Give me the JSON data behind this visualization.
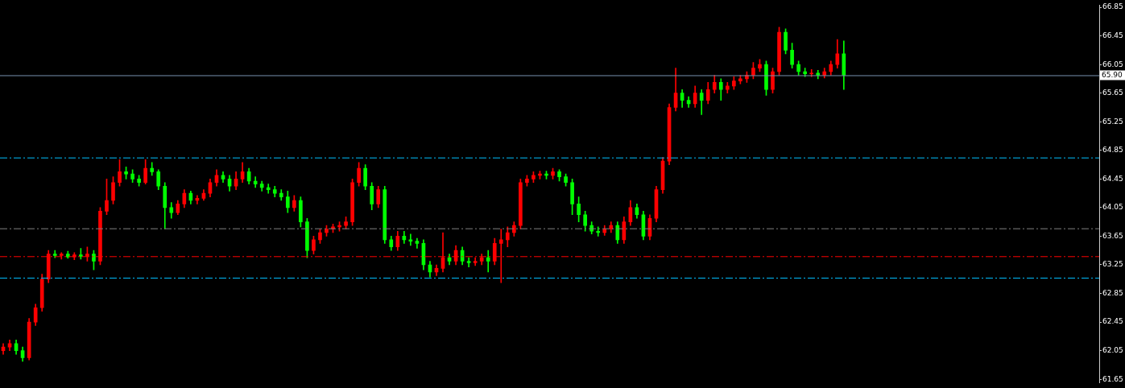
{
  "chart_data": {
    "type": "candlestick",
    "categories": [
      null,
      null,
      null,
      null,
      null,
      null,
      null,
      null,
      null,
      null,
      null,
      null,
      null,
      null,
      null,
      null,
      null,
      null,
      null,
      null,
      null,
      null,
      null,
      null,
      null,
      null,
      null,
      null,
      null,
      null,
      null,
      null,
      null,
      null,
      null,
      null,
      null,
      null,
      null,
      null,
      null,
      null,
      null,
      null,
      null,
      null,
      null,
      null,
      null,
      null,
      null,
      null,
      null,
      null,
      null,
      null,
      null,
      null,
      null,
      null,
      null,
      null,
      null,
      null,
      null,
      null,
      null,
      null,
      null,
      null,
      null,
      null,
      null,
      null,
      null,
      null,
      null,
      null,
      null,
      null,
      null,
      null,
      null,
      null,
      null,
      null,
      null,
      null,
      null,
      null,
      null,
      null,
      null,
      null,
      null,
      null,
      null,
      null,
      null,
      null,
      null,
      null,
      null,
      null,
      null,
      null,
      null,
      null,
      null,
      null,
      null,
      null,
      null,
      null,
      null,
      null,
      null,
      null,
      null,
      null,
      null,
      null,
      null,
      null,
      null,
      null,
      null,
      null,
      null,
      null,
      null,
      null,
      null,
      null,
      null,
      null,
      null,
      null,
      null,
      null,
      null,
      null,
      null,
      null,
      null,
      null,
      null,
      null,
      null,
      null,
      null,
      null,
      null,
      null,
      null,
      null,
      null,
      null,
      null,
      null,
      null,
      null,
      null,
      null,
      null,
      null,
      null,
      null,
      null,
      null
    ],
    "ohlc": [
      [
        62.05,
        62.15,
        62.0,
        62.1
      ],
      [
        62.1,
        62.2,
        62.05,
        62.15
      ],
      [
        62.15,
        62.2,
        62.0,
        62.05
      ],
      [
        62.05,
        62.1,
        61.9,
        61.95
      ],
      [
        61.95,
        62.5,
        61.92,
        62.45
      ],
      [
        62.45,
        62.7,
        62.4,
        62.65
      ],
      [
        62.65,
        63.12,
        62.6,
        63.05
      ],
      [
        63.05,
        63.45,
        63.0,
        63.4
      ],
      [
        63.4,
        63.45,
        63.35,
        63.38
      ],
      [
        63.38,
        63.42,
        63.33,
        63.4
      ],
      [
        63.4,
        63.44,
        63.34,
        63.36
      ],
      [
        63.36,
        63.42,
        63.32,
        63.39
      ],
      [
        63.39,
        63.48,
        63.33,
        63.37
      ],
      [
        63.37,
        63.5,
        63.3,
        63.4
      ],
      [
        63.4,
        63.45,
        63.18,
        63.3
      ],
      [
        63.3,
        64.05,
        63.25,
        64.0
      ],
      [
        64.0,
        64.45,
        63.95,
        64.15
      ],
      [
        64.15,
        64.48,
        64.1,
        64.4
      ],
      [
        64.4,
        64.72,
        64.35,
        64.55
      ],
      [
        64.55,
        64.62,
        64.45,
        64.52
      ],
      [
        64.52,
        64.58,
        64.4,
        64.45
      ],
      [
        64.45,
        64.5,
        64.35,
        64.4
      ],
      [
        64.4,
        64.72,
        64.38,
        64.6
      ],
      [
        64.6,
        64.68,
        64.5,
        64.55
      ],
      [
        64.55,
        64.58,
        64.3,
        64.35
      ],
      [
        64.35,
        64.4,
        63.75,
        64.05
      ],
      [
        64.05,
        64.12,
        63.9,
        63.98
      ],
      [
        63.98,
        64.15,
        63.95,
        64.1
      ],
      [
        64.1,
        64.3,
        64.05,
        64.25
      ],
      [
        64.25,
        64.28,
        64.1,
        64.15
      ],
      [
        64.15,
        64.22,
        64.1,
        64.18
      ],
      [
        64.18,
        64.3,
        64.15,
        64.25
      ],
      [
        64.25,
        64.45,
        64.2,
        64.4
      ],
      [
        64.4,
        64.58,
        64.35,
        64.5
      ],
      [
        64.5,
        64.55,
        64.4,
        64.45
      ],
      [
        64.45,
        64.5,
        64.28,
        64.35
      ],
      [
        64.35,
        64.55,
        64.3,
        64.45
      ],
      [
        64.45,
        64.68,
        64.4,
        64.55
      ],
      [
        64.55,
        64.6,
        64.38,
        64.42
      ],
      [
        64.42,
        64.48,
        64.33,
        64.38
      ],
      [
        64.38,
        64.42,
        64.28,
        64.33
      ],
      [
        64.33,
        64.38,
        64.25,
        64.3
      ],
      [
        64.3,
        64.35,
        64.2,
        64.25
      ],
      [
        64.25,
        64.3,
        64.15,
        64.2
      ],
      [
        64.2,
        64.28,
        63.98,
        64.05
      ],
      [
        64.05,
        64.22,
        64.0,
        64.15
      ],
      [
        64.15,
        64.2,
        63.78,
        63.85
      ],
      [
        63.85,
        63.9,
        63.35,
        63.45
      ],
      [
        63.45,
        63.65,
        63.4,
        63.6
      ],
      [
        63.6,
        63.75,
        63.55,
        63.7
      ],
      [
        63.7,
        63.8,
        63.65,
        63.75
      ],
      [
        63.75,
        63.82,
        63.7,
        63.78
      ],
      [
        63.78,
        63.85,
        63.72,
        63.8
      ],
      [
        63.8,
        63.92,
        63.75,
        63.85
      ],
      [
        63.85,
        64.45,
        63.8,
        64.4
      ],
      [
        64.4,
        64.68,
        64.35,
        64.6
      ],
      [
        64.6,
        64.65,
        64.3,
        64.35
      ],
      [
        64.35,
        64.4,
        64.02,
        64.1
      ],
      [
        64.1,
        64.35,
        64.05,
        64.3
      ],
      [
        64.3,
        64.35,
        63.55,
        63.6
      ],
      [
        63.6,
        63.65,
        63.45,
        63.5
      ],
      [
        63.5,
        63.72,
        63.45,
        63.65
      ],
      [
        63.65,
        63.72,
        63.55,
        63.6
      ],
      [
        63.6,
        63.68,
        63.52,
        63.58
      ],
      [
        63.58,
        63.62,
        63.48,
        63.55
      ],
      [
        63.55,
        63.6,
        63.18,
        63.25
      ],
      [
        63.25,
        63.3,
        63.08,
        63.15
      ],
      [
        63.15,
        63.25,
        63.1,
        63.2
      ],
      [
        63.2,
        63.7,
        63.15,
        63.35
      ],
      [
        63.35,
        63.4,
        63.25,
        63.3
      ],
      [
        63.3,
        63.52,
        63.25,
        63.45
      ],
      [
        63.45,
        63.5,
        63.25,
        63.3
      ],
      [
        63.3,
        63.35,
        63.22,
        63.28
      ],
      [
        63.28,
        63.35,
        63.24,
        63.3
      ],
      [
        63.3,
        63.4,
        63.25,
        63.35
      ],
      [
        63.35,
        63.45,
        63.15,
        63.3
      ],
      [
        63.3,
        63.62,
        63.25,
        63.55
      ],
      [
        63.55,
        63.75,
        63.0,
        63.6
      ],
      [
        63.6,
        63.78,
        63.5,
        63.7
      ],
      [
        63.7,
        63.85,
        63.65,
        63.8
      ],
      [
        63.8,
        64.45,
        63.75,
        64.4
      ],
      [
        64.4,
        64.5,
        64.35,
        64.45
      ],
      [
        64.45,
        64.55,
        64.4,
        64.5
      ],
      [
        64.5,
        64.56,
        64.45,
        64.52
      ],
      [
        64.52,
        64.56,
        64.45,
        64.5
      ],
      [
        64.5,
        64.6,
        64.45,
        64.55
      ],
      [
        64.55,
        64.58,
        64.42,
        64.48
      ],
      [
        64.48,
        64.52,
        64.35,
        64.4
      ],
      [
        64.4,
        64.45,
        63.95,
        64.1
      ],
      [
        64.1,
        64.2,
        63.85,
        63.95
      ],
      [
        63.95,
        64.0,
        63.72,
        63.8
      ],
      [
        63.8,
        63.85,
        63.68,
        63.72
      ],
      [
        63.72,
        63.78,
        63.65,
        63.7
      ],
      [
        63.7,
        63.8,
        63.66,
        63.75
      ],
      [
        63.75,
        63.85,
        63.7,
        63.8
      ],
      [
        63.8,
        63.85,
        63.55,
        63.6
      ],
      [
        63.6,
        63.92,
        63.55,
        63.85
      ],
      [
        63.85,
        64.15,
        63.8,
        64.05
      ],
      [
        64.05,
        64.1,
        63.9,
        63.95
      ],
      [
        63.95,
        64.0,
        63.6,
        63.65
      ],
      [
        63.65,
        63.95,
        63.6,
        63.9
      ],
      [
        63.9,
        64.35,
        63.85,
        64.3
      ],
      [
        64.3,
        64.75,
        64.25,
        64.7
      ],
      [
        64.7,
        65.5,
        64.65,
        65.45
      ],
      [
        65.45,
        66.0,
        65.4,
        65.65
      ],
      [
        65.65,
        65.7,
        65.45,
        65.55
      ],
      [
        65.55,
        65.6,
        65.45,
        65.5
      ],
      [
        65.5,
        65.75,
        65.45,
        65.65
      ],
      [
        65.65,
        65.7,
        65.35,
        65.55
      ],
      [
        65.55,
        65.8,
        65.5,
        65.7
      ],
      [
        65.7,
        65.9,
        65.65,
        65.8
      ],
      [
        65.8,
        65.85,
        65.55,
        65.7
      ],
      [
        65.7,
        65.8,
        65.65,
        65.75
      ],
      [
        65.75,
        65.88,
        65.7,
        65.82
      ],
      [
        65.82,
        65.9,
        65.78,
        65.85
      ],
      [
        65.85,
        65.95,
        65.8,
        65.9
      ],
      [
        65.9,
        66.08,
        65.85,
        66.0
      ],
      [
        66.0,
        66.12,
        65.95,
        66.05
      ],
      [
        66.05,
        66.1,
        65.62,
        65.7
      ],
      [
        65.7,
        66.0,
        65.65,
        65.95
      ],
      [
        65.95,
        66.57,
        65.9,
        66.5
      ],
      [
        66.5,
        66.55,
        66.2,
        66.25
      ],
      [
        66.25,
        66.35,
        66.0,
        66.05
      ],
      [
        66.05,
        66.1,
        65.9,
        65.95
      ],
      [
        65.95,
        66.0,
        65.88,
        65.92
      ],
      [
        65.92,
        65.98,
        65.88,
        65.93
      ],
      [
        65.93,
        65.97,
        65.85,
        65.9
      ],
      [
        65.9,
        66.0,
        65.86,
        65.95
      ],
      [
        65.95,
        66.1,
        65.9,
        66.05
      ],
      [
        66.05,
        66.4,
        66.0,
        66.2
      ],
      [
        66.2,
        66.38,
        65.7,
        65.9
      ],
      null,
      null,
      null,
      null,
      null,
      null,
      null,
      null,
      null,
      null,
      null,
      null,
      null,
      null,
      null,
      null,
      null,
      null,
      null,
      null,
      null,
      null,
      null,
      null,
      null,
      null,
      null,
      null,
      null,
      null,
      null,
      null,
      null,
      null,
      null,
      null,
      null,
      null,
      null
    ],
    "colors": [
      "#ff0000",
      "#ff0000",
      "#00ff00",
      "#00ff00",
      "#ff0000",
      "#ff0000",
      "#ff0000",
      "#ff0000",
      "#00ff00",
      "#ff0000",
      "#00ff00",
      "#ff0000",
      "#00ff00",
      "#ff0000",
      "#00ff00",
      "#ff0000",
      "#ff0000",
      "#ff0000",
      "#ff0000",
      "#00ff00",
      "#00ff00",
      "#00ff00",
      "#ff0000",
      "#00ff00",
      "#00ff00",
      "#00ff00",
      "#00ff00",
      "#ff0000",
      "#ff0000",
      "#00ff00",
      "#ff0000",
      "#ff0000",
      "#ff0000",
      "#ff0000",
      "#00ff00",
      "#00ff00",
      "#ff0000",
      "#ff0000",
      "#00ff00",
      "#00ff00",
      "#00ff00",
      "#00ff00",
      "#00ff00",
      "#00ff00",
      "#00ff00",
      "#ff0000",
      "#00ff00",
      "#00ff00",
      "#ff0000",
      "#ff0000",
      "#ff0000",
      "#ff0000",
      "#ff0000",
      "#ff0000",
      "#ff0000",
      "#ff0000",
      "#00ff00",
      "#00ff00",
      "#ff0000",
      "#00ff00",
      "#00ff00",
      "#ff0000",
      "#00ff00",
      "#00ff00",
      "#00ff00",
      "#00ff00",
      "#00ff00",
      "#ff0000",
      "#ff0000",
      "#00ff00",
      "#ff0000",
      "#00ff00",
      "#00ff00",
      "#ff0000",
      "#ff0000",
      "#00ff00",
      "#ff0000",
      "#ff0000",
      "#ff0000",
      "#ff0000",
      "#ff0000",
      "#ff0000",
      "#ff0000",
      "#ff0000",
      "#00ff00",
      "#ff0000",
      "#00ff00",
      "#00ff00",
      "#00ff00",
      "#00ff00",
      "#00ff00",
      "#00ff00",
      "#00ff00",
      "#ff0000",
      "#ff0000",
      "#00ff00",
      "#ff0000",
      "#ff0000",
      "#00ff00",
      "#00ff00",
      "#ff0000",
      "#ff0000",
      "#ff0000",
      "#ff0000",
      "#ff0000",
      "#00ff00",
      "#00ff00",
      "#ff0000",
      "#00ff00",
      "#ff0000",
      "#ff0000",
      "#00ff00",
      "#ff0000",
      "#ff0000",
      "#ff0000",
      "#ff0000",
      "#ff0000",
      "#ff0000",
      "#00ff00",
      "#ff0000",
      "#ff0000",
      "#00ff00",
      "#00ff00",
      "#00ff00",
      "#00ff00",
      "#ff0000",
      "#00ff00",
      "#ff0000",
      "#ff0000",
      "#ff0000",
      "#00ff00",
      null,
      null,
      null,
      null,
      null,
      null,
      null,
      null,
      null,
      null,
      null,
      null,
      null,
      null,
      null,
      null,
      null,
      null,
      null,
      null,
      null,
      null,
      null,
      null,
      null,
      null,
      null,
      null,
      null,
      null,
      null,
      null,
      null,
      null,
      null,
      null,
      null,
      null,
      null
    ],
    "ylim": [
      61.6,
      66.88
    ],
    "yticks": [
      61.65,
      62.05,
      62.45,
      62.85,
      63.25,
      63.65,
      64.05,
      64.45,
      64.85,
      65.25,
      65.65,
      66.05,
      66.45,
      66.85
    ],
    "tick_labels": "y",
    "ref_lines": [
      {
        "axis": "y",
        "value": 65.9,
        "label": "65.90",
        "color": "#7890b0",
        "line_style": "solid"
      },
      {
        "axis": "y",
        "value": 64.75,
        "color": "#00bfff",
        "line_style": "dashed"
      },
      {
        "axis": "y",
        "value": 63.76,
        "color": "#808080",
        "line_style": "dashed"
      },
      {
        "axis": "y",
        "value": 63.37,
        "color": "#ff0000",
        "line_style": "dashed"
      },
      {
        "axis": "y",
        "value": 63.07,
        "color": "#00bfff",
        "line_style": "dashed"
      }
    ]
  }
}
